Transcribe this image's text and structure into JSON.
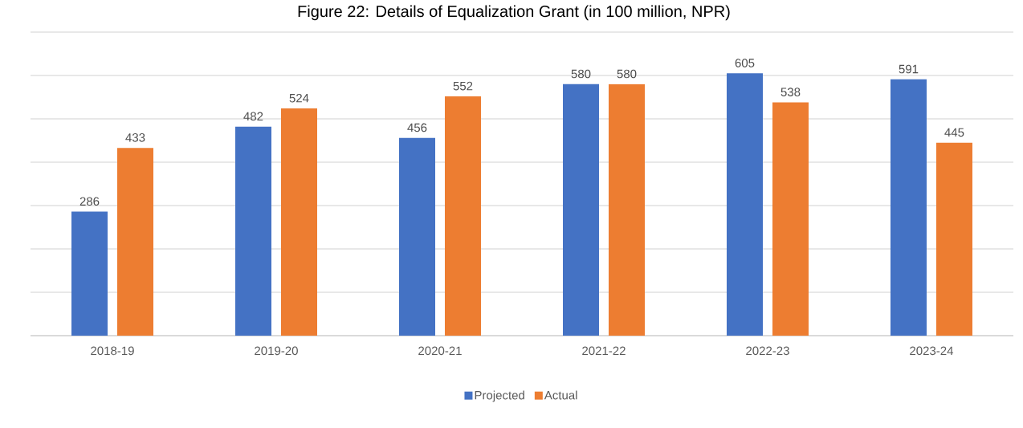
{
  "chart_data": {
    "type": "bar",
    "title": "Figure 22: Details of Equalization Grant (in 100 million, NPR)",
    "categories": [
      "2018-19",
      "2019-20",
      "2020-21",
      "2021-22",
      "2022-23",
      "2023-24"
    ],
    "series": [
      {
        "name": "Projected",
        "color": "#4472c4",
        "values": [
          286,
          482,
          456,
          580,
          605,
          591
        ]
      },
      {
        "name": "Actual",
        "color": "#ed7d31",
        "values": [
          433,
          524,
          552,
          580,
          538,
          445
        ]
      }
    ],
    "ylim": [
      0,
      700
    ],
    "yticks": [
      {
        "value": 0,
        "label": null
      },
      {
        "value": 100,
        "label": null
      },
      {
        "value": 200,
        "label": null
      },
      {
        "value": 300,
        "label": null
      },
      {
        "value": 400,
        "label": null
      },
      {
        "value": 500,
        "label": null
      },
      {
        "value": 600,
        "label": null
      },
      {
        "value": 700,
        "label": null
      }
    ],
    "tick_labels": "x",
    "grid": "y",
    "data_labels": true,
    "legend": "bottom"
  }
}
